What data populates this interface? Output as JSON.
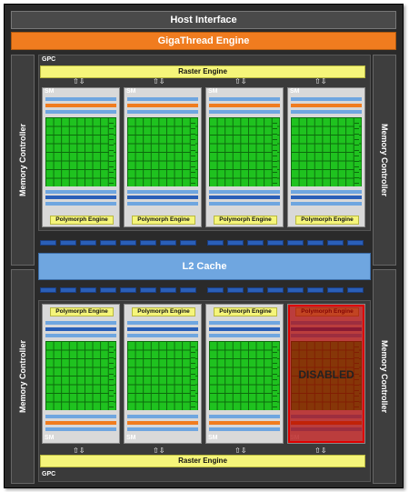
{
  "host_interface": "Host Interface",
  "gigathread": "GigaThread Engine",
  "memory_controller": "Memory Controller",
  "gpc_label": "GPC",
  "raster_engine": "Raster Engine",
  "l2_cache": "L2 Cache",
  "sm_label": "SM",
  "polymorph": "Polymorph Engine",
  "disabled": "DISABLED",
  "arrows": "⇧⇩",
  "colors": {
    "frame": "#2a2a2a",
    "orange": "#f07c1f",
    "yellow": "#f5f57a",
    "green": "#1fc21f",
    "blue": "#6fa6e0",
    "disabled": "#b00000"
  }
}
